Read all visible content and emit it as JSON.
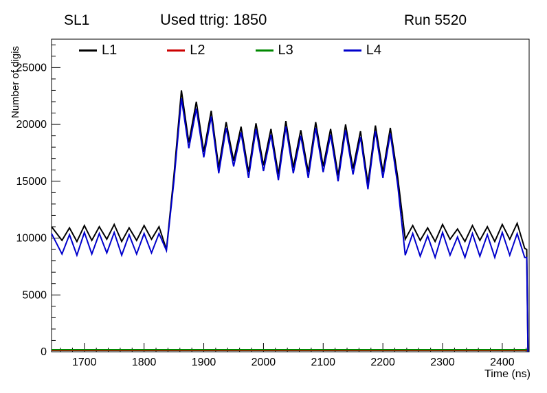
{
  "chart_data": {
    "type": "line",
    "header_left": "SL1",
    "header_center": "Used ttrig: 1850",
    "header_right": "Run 5520",
    "xlabel": "Time (ns)",
    "ylabel": "Number of digis",
    "xlim": [
      1645,
      2445
    ],
    "ylim": [
      0,
      27500
    ],
    "x_ticks": [
      1700,
      1800,
      1900,
      2000,
      2100,
      2200,
      2300,
      2400
    ],
    "x_minor_step": 20,
    "y_ticks": [
      0,
      5000,
      10000,
      15000,
      20000,
      25000
    ],
    "y_minor_step": 1000,
    "grid": false,
    "legend_position": "top-inside-horizontal",
    "series": [
      {
        "name": "L1",
        "color": "#000000",
        "x": [
          1645,
          1662.5,
          1675,
          1687.5,
          1700,
          1712.5,
          1725,
          1737.5,
          1750,
          1762.5,
          1775,
          1787.5,
          1800,
          1812.5,
          1825,
          1837.5,
          1850,
          1862.5,
          1875,
          1887.5,
          1900,
          1912.5,
          1925,
          1937.5,
          1950,
          1962.5,
          1975,
          1987.5,
          2000,
          2012.5,
          2025,
          2037.5,
          2050,
          2062.5,
          2075,
          2087.5,
          2100,
          2112.5,
          2125,
          2137.5,
          2150,
          2162.5,
          2175,
          2187.5,
          2200,
          2212.5,
          2225,
          2237.5,
          2250,
          2262.5,
          2275,
          2287.5,
          2300,
          2312.5,
          2325,
          2337.5,
          2350,
          2362.5,
          2375,
          2387.5,
          2400,
          2412.5,
          2425,
          2437.5,
          2441,
          2443
        ],
        "y": [
          11000,
          9800,
          10900,
          9700,
          11100,
          9800,
          11000,
          9900,
          11200,
          9700,
          10900,
          9800,
          11100,
          9900,
          11000,
          9000,
          15500,
          23000,
          18400,
          22000,
          17600,
          21200,
          16200,
          20200,
          16800,
          19800,
          15800,
          20100,
          16400,
          19600,
          15600,
          20300,
          16200,
          19500,
          15800,
          20200,
          16300,
          19600,
          15500,
          20000,
          16100,
          19400,
          14800,
          19900,
          15800,
          19700,
          15300,
          9900,
          11100,
          9800,
          10900,
          9700,
          11200,
          9900,
          10800,
          9700,
          11100,
          9800,
          11000,
          9700,
          11200,
          9900,
          11300,
          9100,
          9000,
          0
        ]
      },
      {
        "name": "L2",
        "color": "#cc0000",
        "x": [
          1645,
          2443
        ],
        "y": [
          120,
          120
        ]
      },
      {
        "name": "L3",
        "color": "#008800",
        "x": [
          1645,
          2443
        ],
        "y": [
          180,
          180
        ]
      },
      {
        "name": "L4",
        "color": "#0000cc",
        "x": [
          1645,
          1662.5,
          1675,
          1687.5,
          1700,
          1712.5,
          1725,
          1737.5,
          1750,
          1762.5,
          1775,
          1787.5,
          1800,
          1812.5,
          1825,
          1837.5,
          1850,
          1862.5,
          1875,
          1887.5,
          1900,
          1912.5,
          1925,
          1937.5,
          1950,
          1962.5,
          1975,
          1987.5,
          2000,
          2012.5,
          2025,
          2037.5,
          2050,
          2062.5,
          2075,
          2087.5,
          2100,
          2112.5,
          2125,
          2137.5,
          2150,
          2162.5,
          2175,
          2187.5,
          2200,
          2212.5,
          2225,
          2237.5,
          2250,
          2262.5,
          2275,
          2287.5,
          2300,
          2312.5,
          2325,
          2337.5,
          2350,
          2362.5,
          2375,
          2387.5,
          2400,
          2412.5,
          2425,
          2437.5,
          2441,
          2443
        ],
        "y": [
          10400,
          8600,
          10300,
          8500,
          10500,
          8600,
          10400,
          8700,
          10500,
          8500,
          10300,
          8600,
          10400,
          8700,
          10400,
          8900,
          15000,
          22300,
          17900,
          21400,
          17100,
          20700,
          15700,
          19700,
          16300,
          19300,
          15300,
          19600,
          15900,
          19100,
          15100,
          19800,
          15700,
          19000,
          15300,
          19700,
          15800,
          19100,
          15000,
          19500,
          15600,
          18900,
          14300,
          19400,
          15300,
          19200,
          14600,
          8500,
          10400,
          8400,
          10200,
          8300,
          10500,
          8500,
          10100,
          8300,
          10400,
          8400,
          10300,
          8300,
          10500,
          8500,
          10400,
          8300,
          8300,
          0
        ]
      }
    ]
  }
}
